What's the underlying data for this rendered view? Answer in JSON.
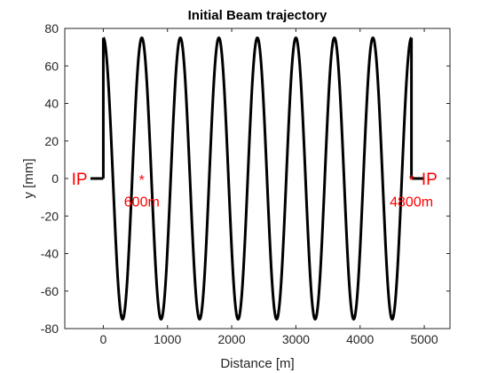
{
  "chart_data": {
    "type": "line",
    "title": "Initial Beam trajectory",
    "xlabel": "Distance [m]",
    "ylabel": "y [mm]",
    "xlim": [
      -600,
      5400
    ],
    "ylim": [
      -80,
      80
    ],
    "xticks": [
      0,
      1000,
      2000,
      3000,
      4000,
      5000
    ],
    "yticks": [
      -80,
      -60,
      -40,
      -20,
      0,
      20,
      40,
      60,
      80
    ],
    "grid": false,
    "legend": "none",
    "series": [
      {
        "color": "#000000",
        "segments": [
          {
            "x": [
              -200,
              0
            ],
            "y": [
              0,
              0
            ]
          },
          {
            "x": [
              0,
              0
            ],
            "y": [
              0,
              75
            ]
          },
          {
            "kind": "sinusoid",
            "x_start": 0,
            "x_end": 4800,
            "amplitude": 75,
            "period": 600,
            "phase": "starts at +75 (cosine)"
          },
          {
            "x": [
              4800,
              4800
            ],
            "y": [
              0,
              75
            ]
          },
          {
            "x": [
              4800,
              5000
            ],
            "y": [
              0,
              0
            ]
          }
        ]
      }
    ],
    "markers": [
      {
        "x": 600,
        "y": 0,
        "symbol": "*",
        "color": "#ff0000"
      },
      {
        "x": 4800,
        "y": 0,
        "symbol": "*",
        "color": "#ff0000"
      }
    ],
    "annotations": [
      {
        "text": "IP",
        "x": -370,
        "y": 0,
        "color": "#ff0000"
      },
      {
        "text": "600m",
        "x": 600,
        "y": -12,
        "color": "#ff0000"
      },
      {
        "text": "IP",
        "x": 5080,
        "y": 0,
        "color": "#ff0000"
      },
      {
        "text": "4800m",
        "x": 4800,
        "y": -12,
        "color": "#ff0000"
      }
    ]
  }
}
